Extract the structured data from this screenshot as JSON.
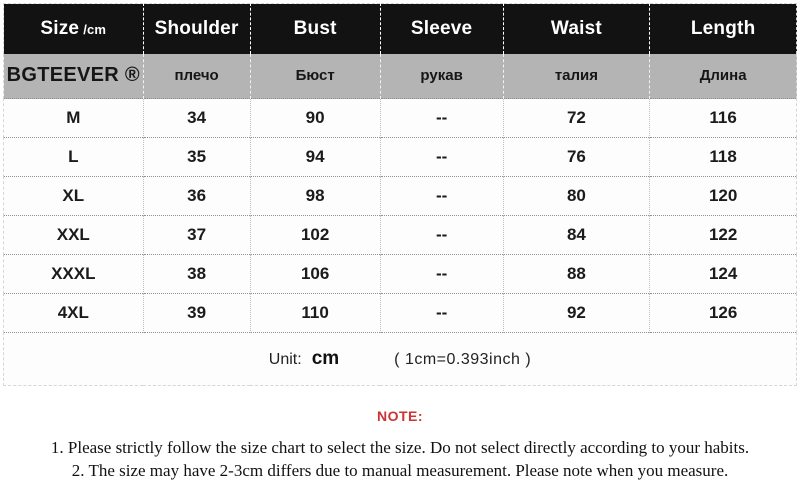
{
  "brand": "BGTEEVER ®",
  "table": {
    "header": {
      "size_label": "Size",
      "size_unit": "/cm",
      "cols": [
        "Shoulder",
        "Bust",
        "Sleeve",
        "Waist",
        "Length"
      ]
    },
    "translations": {
      "shoulder": "плечо",
      "bust": "Бюст",
      "sleeve": "рукав",
      "waist": "талия",
      "length": "Длина"
    },
    "rows": [
      {
        "size": "M",
        "shoulder": "34",
        "bust": "90",
        "sleeve": "--",
        "waist": "72",
        "length": "116"
      },
      {
        "size": "L",
        "shoulder": "35",
        "bust": "94",
        "sleeve": "--",
        "waist": "76",
        "length": "118"
      },
      {
        "size": "XL",
        "shoulder": "36",
        "bust": "98",
        "sleeve": "--",
        "waist": "80",
        "length": "120"
      },
      {
        "size": "XXL",
        "shoulder": "37",
        "bust": "102",
        "sleeve": "--",
        "waist": "84",
        "length": "122"
      },
      {
        "size": "XXXL",
        "shoulder": "38",
        "bust": "106",
        "sleeve": "--",
        "waist": "88",
        "length": "124"
      },
      {
        "size": "4XL",
        "shoulder": "39",
        "bust": "110",
        "sleeve": "--",
        "waist": "92",
        "length": "126"
      }
    ],
    "unit": {
      "label": "Unit:",
      "value": "cm",
      "conversion": "( 1cm=0.393inch )"
    }
  },
  "notes": {
    "title": "NOTE:",
    "items": [
      "1. Please strictly follow the size chart to select the size. Do not select directly according to your habits.",
      "2. The size may have 2-3cm differs due to manual measurement. Please note when you measure."
    ]
  },
  "colors": {
    "header_bg": "#121212",
    "subheader_bg": "#b4b4b4",
    "note_red": "#cc3333"
  }
}
